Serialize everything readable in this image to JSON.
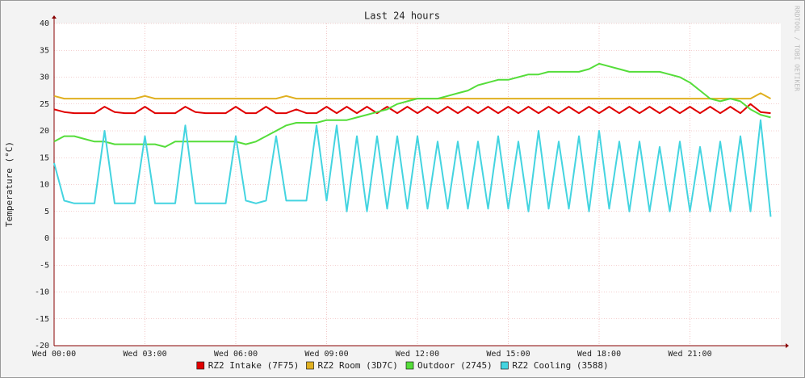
{
  "chart_data": {
    "type": "line",
    "title": "Last 24 hours",
    "y_label": "Temperature (°C)",
    "watermark": "RRDTOOL / TOBI OETIKER",
    "x": [
      0,
      20,
      40,
      60,
      80,
      100,
      120,
      140,
      160,
      180,
      200,
      220,
      240,
      260,
      280,
      300,
      320,
      340,
      360,
      380,
      400,
      420,
      440,
      460,
      480,
      500,
      520,
      540,
      560,
      580,
      600,
      620,
      640,
      660,
      680,
      700,
      720,
      740,
      760,
      780,
      800,
      820,
      840,
      860,
      880,
      900,
      920,
      940,
      960,
      980,
      1000,
      1020,
      1040,
      1060,
      1080,
      1100,
      1120,
      1140,
      1160,
      1180,
      1200,
      1220,
      1240,
      1260,
      1280,
      1300,
      1320,
      1340,
      1360,
      1380,
      1400,
      1420
    ],
    "xlim": [
      0,
      1440
    ],
    "xticks": [
      {
        "value": 0,
        "label": "Wed 00:00"
      },
      {
        "value": 180,
        "label": "Wed 03:00"
      },
      {
        "value": 360,
        "label": "Wed 06:00"
      },
      {
        "value": 540,
        "label": "Wed 09:00"
      },
      {
        "value": 720,
        "label": "Wed 12:00"
      },
      {
        "value": 900,
        "label": "Wed 15:00"
      },
      {
        "value": 1080,
        "label": "Wed 18:00"
      },
      {
        "value": 1260,
        "label": "Wed 21:00"
      }
    ],
    "ylim": [
      -20,
      40
    ],
    "yticks": [
      -20,
      -15,
      -10,
      -5,
      0,
      5,
      10,
      15,
      20,
      25,
      30,
      35,
      40
    ],
    "grid": true,
    "series": [
      {
        "name": "RZ2 Intake (7F75)",
        "color": "#e00000",
        "values": [
          24,
          23.5,
          23.3,
          23.3,
          23.3,
          24.5,
          23.5,
          23.3,
          23.3,
          24.5,
          23.3,
          23.3,
          23.3,
          24.5,
          23.5,
          23.3,
          23.3,
          23.3,
          24.5,
          23.3,
          23.3,
          24.5,
          23.3,
          23.3,
          24,
          23.3,
          23.3,
          24.5,
          23.3,
          24.5,
          23.3,
          24.5,
          23.3,
          24.5,
          23.3,
          24.5,
          23.3,
          24.5,
          23.3,
          24.5,
          23.3,
          24.5,
          23.3,
          24.5,
          23.3,
          24.5,
          23.3,
          24.5,
          23.3,
          24.5,
          23.3,
          24.5,
          23.3,
          24.5,
          23.3,
          24.5,
          23.3,
          24.5,
          23.3,
          24.5,
          23.3,
          24.5,
          23.3,
          24.5,
          23.3,
          24.5,
          23.3,
          24.5,
          23.3,
          25,
          23.5,
          23.3
        ]
      },
      {
        "name": "RZ2 Room (3D7C)",
        "color": "#e0b020",
        "values": [
          26.5,
          26,
          26,
          26,
          26,
          26,
          26,
          26,
          26,
          26.5,
          26,
          26,
          26,
          26,
          26,
          26,
          26,
          26,
          26,
          26,
          26,
          26,
          26,
          26.5,
          26,
          26,
          26,
          26,
          26,
          26,
          26,
          26,
          26,
          26,
          26,
          26,
          26,
          26,
          26,
          26,
          26,
          26,
          26,
          26,
          26,
          26,
          26,
          26,
          26,
          26,
          26,
          26,
          26,
          26,
          26,
          26,
          26,
          26,
          26,
          26,
          26,
          26,
          26,
          26,
          26,
          26,
          26,
          26,
          26,
          26,
          27,
          26
        ]
      },
      {
        "name": "Outdoor (2745)",
        "color": "#55dd3a",
        "values": [
          18,
          19,
          19,
          18.5,
          18,
          18,
          17.5,
          17.5,
          17.5,
          17.5,
          17.5,
          17,
          18,
          18,
          18,
          18,
          18,
          18,
          18,
          17.5,
          18,
          19,
          20,
          21,
          21.5,
          21.5,
          21.5,
          22,
          22,
          22,
          22.5,
          23,
          23.5,
          24,
          25,
          25.5,
          26,
          26,
          26,
          26.5,
          27,
          27.5,
          28.5,
          29,
          29.5,
          29.5,
          30,
          30.5,
          30.5,
          31,
          31,
          31,
          31,
          31.5,
          32.5,
          32,
          31.5,
          31,
          31,
          31,
          31,
          30.5,
          30,
          29,
          27.5,
          26,
          25.5,
          26,
          25.5,
          24,
          23,
          22.5
        ]
      },
      {
        "name": "RZ2 Cooling (3588)",
        "color": "#44d4e0",
        "values": [
          14,
          7,
          6.5,
          6.5,
          6.5,
          20,
          6.5,
          6.5,
          6.5,
          19,
          6.5,
          6.5,
          6.5,
          21,
          6.5,
          6.5,
          6.5,
          6.5,
          19,
          7,
          6.5,
          7,
          19,
          7,
          7,
          7,
          21,
          7,
          21,
          5,
          19,
          5,
          19,
          5.5,
          19,
          5.5,
          19,
          5.5,
          18,
          5.5,
          18,
          5.5,
          18,
          5.5,
          19,
          5.5,
          18,
          5,
          20,
          5.5,
          18,
          5.5,
          19,
          5,
          20,
          5.5,
          18,
          5,
          18,
          5,
          17,
          5,
          18,
          5,
          17,
          5,
          18,
          5,
          19,
          5,
          22,
          4
        ]
      }
    ]
  }
}
